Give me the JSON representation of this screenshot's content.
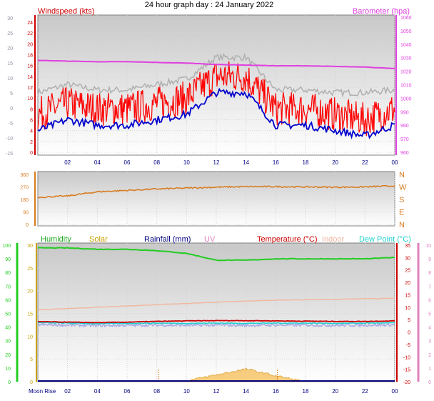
{
  "title": "24 hour graph day : 24 January 2022",
  "x_ticks": [
    "02",
    "04",
    "06",
    "08",
    "10",
    "12",
    "14",
    "16",
    "18",
    "20",
    "22",
    "00"
  ],
  "moon_rise_label": "Moon Rise",
  "colors": {
    "windspeed": "#cc0000",
    "wind_red": "#ff0000",
    "wind_blue": "#0000cc",
    "baro": "#e040e0",
    "gust_grey": "#b0b0b0",
    "direction": "#d87a1e",
    "humidity": "#22cc22",
    "solar": "#c8a000",
    "rain": "#000080",
    "uv": "#e080c0",
    "temperature": "#cc0000",
    "indoor": "#f0b8a0",
    "dew": "#22d0d0",
    "dew_lav": "#a8a8e8"
  },
  "chart_data": [
    {
      "type": "line",
      "title": "24 hour graph day : 24 January 2022",
      "legend": [
        "Windspeed (kts)",
        "Barometer (hpa)"
      ],
      "y_left": {
        "label": "Windspeed (kts)",
        "ticks": [
          0,
          2,
          4,
          6,
          8,
          10,
          12,
          14,
          16,
          18,
          20,
          22,
          24
        ]
      },
      "y_far_left": {
        "ticks": [
          30,
          25,
          20,
          15,
          10,
          5,
          0,
          -5,
          -10,
          -15
        ]
      },
      "y_right": {
        "label": "Barometer (hpa)",
        "ticks": [
          960,
          970,
          980,
          990,
          1000,
          1010,
          1020,
          1030,
          1040,
          1050,
          1060
        ]
      },
      "x": [
        0,
        2,
        4,
        6,
        8,
        10,
        12,
        14,
        16,
        18,
        20,
        22,
        24
      ],
      "series": [
        {
          "name": "Windspeed (kts)",
          "values": [
            5,
            7,
            6,
            6,
            7,
            8,
            12,
            12,
            6,
            6,
            5,
            4,
            6
          ]
        },
        {
          "name": "Barometer (hpa)",
          "values": [
            1028,
            1027.5,
            1027,
            1027,
            1026.5,
            1026,
            1025,
            1024.5,
            1024,
            1024,
            1023.5,
            1023,
            1022
          ]
        }
      ]
    },
    {
      "type": "line",
      "y_left": {
        "ticks": [
          360,
          270,
          180,
          90,
          0
        ]
      },
      "y_right": {
        "ticks": [
          "N",
          "W",
          "S",
          "E",
          "N"
        ]
      },
      "x": [
        0,
        2,
        4,
        6,
        8,
        10,
        12,
        14,
        16,
        18,
        20,
        22,
        24
      ],
      "series": [
        {
          "values": [
            195,
            205,
            235,
            245,
            255,
            262,
            268,
            272,
            272,
            270,
            268,
            270,
            278
          ]
        }
      ]
    },
    {
      "type": "line",
      "legend": [
        "Humidity",
        "Solar",
        "Rainfall (mm)",
        "UV",
        "Temperature (°C)",
        "Indoor",
        "Dew Point (°C)"
      ],
      "y_left_humidity": {
        "ticks": [
          0,
          10,
          20,
          30,
          40,
          50,
          60,
          70,
          80,
          90,
          100
        ]
      },
      "y_left_solar": {
        "ticks": [
          0,
          5,
          10,
          15,
          20,
          25,
          30
        ]
      },
      "y_right_temp": {
        "ticks": [
          -20,
          -15,
          -10,
          -5,
          0,
          5,
          10,
          15,
          20,
          25,
          30,
          35
        ]
      },
      "y_right_uv": {
        "ticks": [
          0,
          1,
          2,
          3,
          4,
          5,
          6,
          7,
          8,
          9,
          10
        ]
      },
      "x": [
        0,
        2,
        4,
        6,
        8,
        10,
        12,
        14,
        16,
        18,
        20,
        22,
        24
      ],
      "series": [
        {
          "name": "Humidity",
          "values": [
            98,
            98,
            97,
            97,
            96,
            94,
            89,
            89,
            90,
            90,
            90,
            90,
            91
          ]
        },
        {
          "name": "Temperature (°C)",
          "values": [
            4.2,
            4,
            3.8,
            4,
            4.3,
            4.5,
            4.6,
            4.6,
            4.5,
            4.4,
            4.3,
            4.3,
            4.5
          ]
        },
        {
          "name": "Dew Point (°C)",
          "values": [
            3.8,
            3.6,
            3.4,
            3.5,
            3.6,
            3.5,
            3.6,
            3.5,
            3.6,
            3.6,
            3.5,
            3.6,
            3.7
          ]
        },
        {
          "name": "Indoor",
          "values": [
            9,
            9.5,
            10,
            10.5,
            11,
            11.5,
            12,
            12.5,
            12.8,
            13,
            13.2,
            13.4,
            13.6
          ]
        },
        {
          "name": "Solar",
          "values": [
            0,
            0,
            0,
            0,
            0,
            0.2,
            1.5,
            2.8,
            1.3,
            0,
            0,
            0,
            0
          ]
        },
        {
          "name": "Rainfall (mm)",
          "values": [
            0,
            0,
            0,
            0,
            0,
            0,
            0,
            0,
            0,
            0,
            0,
            0,
            0
          ]
        },
        {
          "name": "UV",
          "values": [
            0,
            0,
            0,
            0,
            0,
            0,
            0,
            0,
            0,
            0,
            0,
            0,
            0
          ]
        }
      ]
    }
  ]
}
